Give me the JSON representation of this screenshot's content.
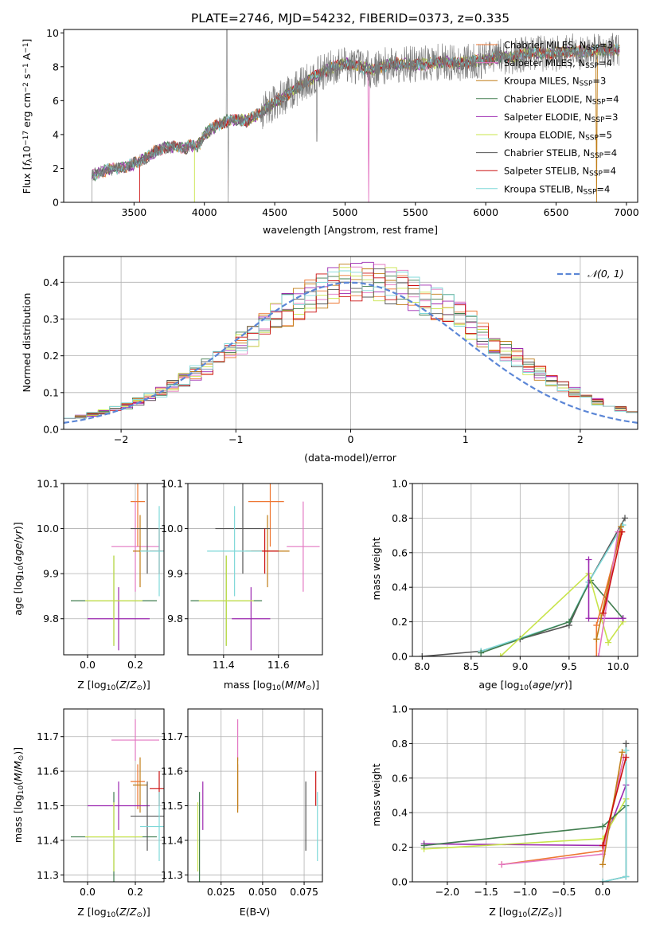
{
  "title": "PLATE=2746, MJD=54232, FIBERID=0373, z=0.335",
  "models": [
    {
      "id": "chab_miles",
      "model": "Chabrier MILES",
      "nssp": "3",
      "color": "#ee7733",
      "age": 10.06,
      "age_err": [
        0.1,
        0.1
      ],
      "mass": 11.57,
      "mass_err": [
        0.08,
        0.05
      ],
      "Z": 0.21,
      "Z_err": [
        0.03,
        0.03
      ],
      "ebv": 0.035
    },
    {
      "id": "salp_miles",
      "model": "Salpeter MILES",
      "nssp": "4",
      "color": "#e377c2",
      "age": 9.96,
      "age_err": [
        0.1,
        0.1
      ],
      "mass": 11.69,
      "mass_err": [
        0.06,
        0.06
      ],
      "Z": 0.2,
      "Z_err": [
        0.1,
        0.1
      ],
      "ebv": 0.035
    },
    {
      "id": "krou_miles",
      "model": "Kroupa MILES",
      "nssp": "3",
      "color": "#c07d16",
      "age": 9.95,
      "age_err": [
        0.08,
        0.08
      ],
      "mass": 11.56,
      "mass_err": [
        0.08,
        0.08
      ],
      "Z": 0.22,
      "Z_err": [
        0.03,
        0.03
      ],
      "ebv": 0.035
    },
    {
      "id": "chab_elodie",
      "model": "Chabrier ELODIE",
      "nssp": "4",
      "color": "#417d4f",
      "age": 9.84,
      "age_err": [
        0.1,
        0.1
      ],
      "mass": 11.41,
      "mass_err": [
        0.13,
        0.13
      ],
      "Z": 0.11,
      "Z_err": [
        0.18,
        0.18
      ],
      "ebv": 0.012
    },
    {
      "id": "salp_elodie",
      "model": "Salpeter ELODIE",
      "nssp": "3",
      "color": "#9c27b0",
      "age": 9.8,
      "age_err": [
        0.07,
        0.07
      ],
      "mass": 11.5,
      "mass_err": [
        0.07,
        0.07
      ],
      "Z": 0.13,
      "Z_err": [
        0.13,
        0.13
      ],
      "ebv": 0.014
    },
    {
      "id": "krou_elodie",
      "model": "Kroupa ELODIE",
      "nssp": "5",
      "color": "#c8e44a",
      "age": 9.84,
      "age_err": [
        0.1,
        0.1
      ],
      "mass": 11.41,
      "mass_err": [
        0.1,
        0.1
      ],
      "Z": 0.11,
      "Z_err": [
        0.12,
        0.12
      ],
      "ebv": 0.011
    },
    {
      "id": "chab_stelib",
      "model": "Chabrier STELIB",
      "nssp": "4",
      "color": "#555555",
      "age": 10.0,
      "age_err": [
        0.1,
        0.1
      ],
      "mass": 11.47,
      "mass_err": [
        0.1,
        0.1
      ],
      "Z": 0.25,
      "Z_err": [
        0.07,
        0.07
      ],
      "ebv": 0.076
    },
    {
      "id": "salp_stelib",
      "model": "Salpeter STELIB",
      "nssp": "4",
      "color": "#cc1111",
      "age": 9.95,
      "age_err": [
        0.05,
        0.05
      ],
      "mass": 11.55,
      "mass_err": [
        0.05,
        0.05
      ],
      "Z": 0.3,
      "Z_err": [
        0.04,
        0.04
      ],
      "ebv": 0.082
    },
    {
      "id": "krou_stelib",
      "model": "Kroupa STELIB",
      "nssp": "4",
      "color": "#7fd8d8",
      "age": 9.95,
      "age_err": [
        0.1,
        0.1
      ],
      "mass": 11.44,
      "mass_err": [
        0.1,
        0.1
      ],
      "Z": 0.3,
      "Z_err": [
        0.08,
        0.08
      ],
      "ebv": 0.083
    }
  ],
  "legend_nssp_label": "N",
  "legend_nssp_sub": "SSP",
  "chart_data": [
    {
      "id": "spectrum",
      "type": "line",
      "xlabel": "wavelength [Angstrom, rest frame]",
      "ylabel": "Flux [f_λ 10^-17 erg cm^-2 s^-1 A^-1]",
      "xlim": [
        3000,
        7080
      ],
      "ylim": [
        0,
        10.2
      ],
      "xticks": [
        3500,
        4000,
        4500,
        5000,
        5500,
        6000,
        6500,
        7000
      ],
      "yticks": [
        0,
        2,
        4,
        6,
        8,
        10
      ],
      "data_color": "#777777",
      "data_x_range": [
        3200,
        6950
      ],
      "continuum": [
        [
          3200,
          1.6
        ],
        [
          3300,
          1.9
        ],
        [
          3450,
          2.1
        ],
        [
          3580,
          2.6
        ],
        [
          3650,
          3.0
        ],
        [
          3700,
          3.2
        ],
        [
          3800,
          3.3
        ],
        [
          3870,
          3.2
        ],
        [
          3900,
          3.4
        ],
        [
          3950,
          3.3
        ],
        [
          4000,
          4.0
        ],
        [
          4100,
          4.6
        ],
        [
          4200,
          4.9
        ],
        [
          4300,
          4.8
        ],
        [
          4400,
          5.3
        ],
        [
          4500,
          5.9
        ],
        [
          4600,
          6.4
        ],
        [
          4700,
          7.0
        ],
        [
          4800,
          7.5
        ],
        [
          4900,
          7.9
        ],
        [
          5000,
          8.2
        ],
        [
          5100,
          8.0
        ],
        [
          5200,
          7.8
        ],
        [
          5300,
          8.1
        ],
        [
          5400,
          8.2
        ],
        [
          5500,
          8.1
        ],
        [
          5600,
          8.2
        ],
        [
          5700,
          8.3
        ],
        [
          5800,
          8.2
        ],
        [
          5900,
          8.3
        ],
        [
          6000,
          8.4
        ],
        [
          6100,
          8.6
        ],
        [
          6200,
          8.6
        ],
        [
          6300,
          8.8
        ],
        [
          6400,
          8.8
        ],
        [
          6500,
          8.8
        ],
        [
          6600,
          8.9
        ],
        [
          6700,
          8.9
        ],
        [
          6800,
          9.0
        ],
        [
          6900,
          9.0
        ]
      ],
      "model_drops": [
        {
          "model": "salp_stelib",
          "x": 3540
        },
        {
          "model": "krou_elodie",
          "x": 3930
        },
        {
          "model": "salp_miles",
          "x": 5170
        },
        {
          "model": "krou_miles",
          "x": 6790
        }
      ],
      "note_no_data_labels": true
    },
    {
      "id": "residuals",
      "type": "line",
      "xlabel": "(data-model)/error",
      "ylabel": "Normed distribution",
      "xlim": [
        -2.5,
        2.5
      ],
      "ylim": [
        0,
        0.47
      ],
      "xticks": [
        -2,
        -1,
        0,
        1,
        2
      ],
      "yticks": [
        0.0,
        0.1,
        0.2,
        0.3,
        0.4
      ],
      "gaussian_label": "𝒩(0, 1)",
      "gaussian_color": "#5b86d6",
      "bin_width": 0.1
    },
    {
      "id": "age_vs_Z",
      "type": "scatter",
      "xlabel": "Z [log10(Z/Z☉)]",
      "ylabel": "age [log10(age/yr)]",
      "xlim": [
        -0.1,
        0.32
      ],
      "ylim": [
        9.72,
        10.1
      ],
      "xticks": [
        0.0,
        0.2
      ],
      "yticks": [
        9.8,
        9.9,
        10.0,
        10.1
      ]
    },
    {
      "id": "age_vs_mass",
      "type": "scatter",
      "xlabel": "mass [log10(M/M☉)]",
      "xlim": [
        11.27,
        11.76
      ],
      "ylim": [
        9.72,
        10.1
      ],
      "xticks": [
        11.4,
        11.6
      ],
      "yticks": [
        9.8,
        9.9,
        10.0,
        10.1
      ]
    },
    {
      "id": "weight_vs_age",
      "type": "line",
      "xlabel": "age [log10(age/yr)]",
      "ylabel": "mass weight",
      "xlim": [
        7.9,
        10.2
      ],
      "ylim": [
        0,
        1.0
      ],
      "xticks": [
        8.0,
        8.5,
        9.0,
        9.5,
        10.0
      ],
      "yticks": [
        0.0,
        0.2,
        0.4,
        0.6,
        0.8,
        1.0
      ],
      "series": [
        {
          "model": "chab_stelib",
          "points": [
            [
              8.0,
              0.0
            ],
            [
              8.6,
              0.03
            ],
            [
              9.0,
              0.1
            ],
            [
              9.5,
              0.18
            ],
            [
              9.7,
              0.43
            ],
            [
              10.07,
              0.8
            ]
          ]
        },
        {
          "model": "krou_stelib",
          "points": [
            [
              8.6,
              0.03
            ],
            [
              9.5,
              0.2
            ],
            [
              9.7,
              0.43
            ],
            [
              10.05,
              0.76
            ]
          ]
        },
        {
          "model": "chab_elodie",
          "points": [
            [
              8.6,
              0.02
            ],
            [
              9.5,
              0.2
            ],
            [
              9.72,
              0.44
            ],
            [
              10.05,
              0.22
            ]
          ]
        },
        {
          "model": "krou_elodie",
          "points": [
            [
              8.8,
              0.0
            ],
            [
              9.7,
              0.48
            ],
            [
              9.9,
              0.08
            ],
            [
              10.05,
              0.2
            ]
          ]
        },
        {
          "model": "salp_elodie",
          "points": [
            [
              9.7,
              0.56
            ],
            [
              9.7,
              0.22
            ],
            [
              10.05,
              0.22
            ]
          ]
        },
        {
          "model": "chab_miles",
          "points": [
            [
              9.78,
              0.0
            ],
            [
              9.78,
              0.18
            ],
            [
              10.03,
              0.72
            ]
          ]
        },
        {
          "model": "krou_miles",
          "points": [
            [
              9.78,
              0.1
            ],
            [
              10.03,
              0.75
            ]
          ]
        },
        {
          "model": "salp_miles",
          "points": [
            [
              9.8,
              0.0
            ],
            [
              10.0,
              0.72
            ]
          ]
        },
        {
          "model": "salp_stelib",
          "points": [
            [
              9.85,
              0.25
            ],
            [
              10.04,
              0.72
            ]
          ]
        }
      ]
    },
    {
      "id": "mass_vs_Z",
      "type": "scatter",
      "xlabel": "Z [log10(Z/Z☉)]",
      "ylabel": "mass [log10(M/M☉)]",
      "xlim": [
        -0.1,
        0.32
      ],
      "ylim": [
        11.28,
        11.78
      ],
      "xticks": [
        0.0,
        0.2
      ],
      "yticks": [
        11.3,
        11.4,
        11.5,
        11.6,
        11.7
      ]
    },
    {
      "id": "mass_vs_ebv",
      "type": "scatter",
      "xlabel": "E(B-V)",
      "xlim": [
        0.005,
        0.086
      ],
      "ylim": [
        11.28,
        11.78
      ],
      "xticks": [
        0.025,
        0.05,
        0.075
      ],
      "yticks": [
        11.3,
        11.4,
        11.5,
        11.6,
        11.7
      ]
    },
    {
      "id": "weight_vs_Z",
      "type": "line",
      "xlabel": "Z [log10(Z/Z☉)]",
      "ylabel": "mass weight",
      "xlim": [
        -2.45,
        0.45
      ],
      "ylim": [
        0,
        1.0
      ],
      "xticks": [
        -2.0,
        -1.5,
        -1.0,
        -0.5,
        0.0
      ],
      "yticks": [
        0.0,
        0.2,
        0.4,
        0.6,
        0.8,
        1.0
      ],
      "series": [
        {
          "model": "salp_elodie",
          "points": [
            [
              -2.3,
              0.22
            ],
            [
              0.0,
              0.21
            ],
            [
              0.3,
              0.56
            ]
          ]
        },
        {
          "model": "krou_elodie",
          "points": [
            [
              -2.3,
              0.19
            ],
            [
              0.0,
              0.25
            ],
            [
              0.3,
              0.48
            ]
          ]
        },
        {
          "model": "chab_elodie",
          "points": [
            [
              -2.3,
              0.21
            ],
            [
              0.0,
              0.32
            ],
            [
              0.3,
              0.44
            ]
          ]
        },
        {
          "model": "chab_miles",
          "points": [
            [
              -1.3,
              0.1
            ],
            [
              0.0,
              0.18
            ],
            [
              0.27,
              0.72
            ]
          ]
        },
        {
          "model": "salp_miles",
          "points": [
            [
              -1.3,
              0.1
            ],
            [
              0.0,
              0.16
            ],
            [
              0.27,
              0.72
            ]
          ]
        },
        {
          "model": "chab_stelib",
          "points": [
            [
              0.0,
              0.0
            ],
            [
              0.3,
              0.03
            ],
            [
              0.3,
              0.8
            ]
          ]
        },
        {
          "model": "krou_stelib",
          "points": [
            [
              0.0,
              0.0
            ],
            [
              0.3,
              0.03
            ],
            [
              0.3,
              0.76
            ]
          ]
        },
        {
          "model": "krou_miles",
          "points": [
            [
              0.0,
              0.1
            ],
            [
              0.25,
              0.75
            ]
          ]
        },
        {
          "model": "salp_stelib",
          "points": [
            [
              0.0,
              0.21
            ],
            [
              0.3,
              0.72
            ]
          ]
        }
      ]
    }
  ]
}
